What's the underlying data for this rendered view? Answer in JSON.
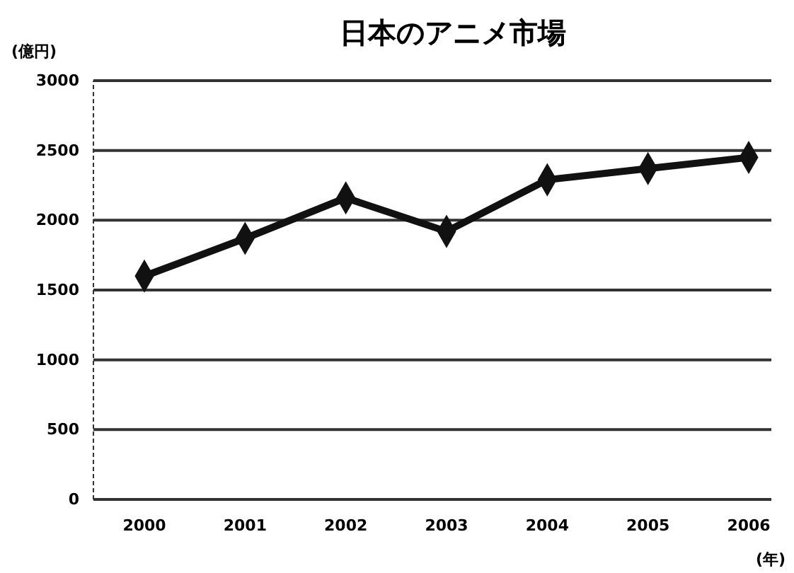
{
  "chart_data": {
    "type": "line",
    "title": "日本のアニメ市場",
    "ylabel": "(億円)",
    "xlabel": "(年)",
    "categories": [
      "2000",
      "2001",
      "2002",
      "2003",
      "2004",
      "2005",
      "2006"
    ],
    "series": [
      {
        "color": "#111111",
        "values": [
          1600,
          1870,
          2160,
          1920,
          2290,
          2370,
          2450
        ]
      }
    ],
    "ylim": [
      0,
      3000
    ],
    "yticks": [
      0,
      500,
      1000,
      1500,
      2000,
      2500,
      3000
    ],
    "grid": "y",
    "marker": "diamond",
    "line_style": "solid"
  }
}
